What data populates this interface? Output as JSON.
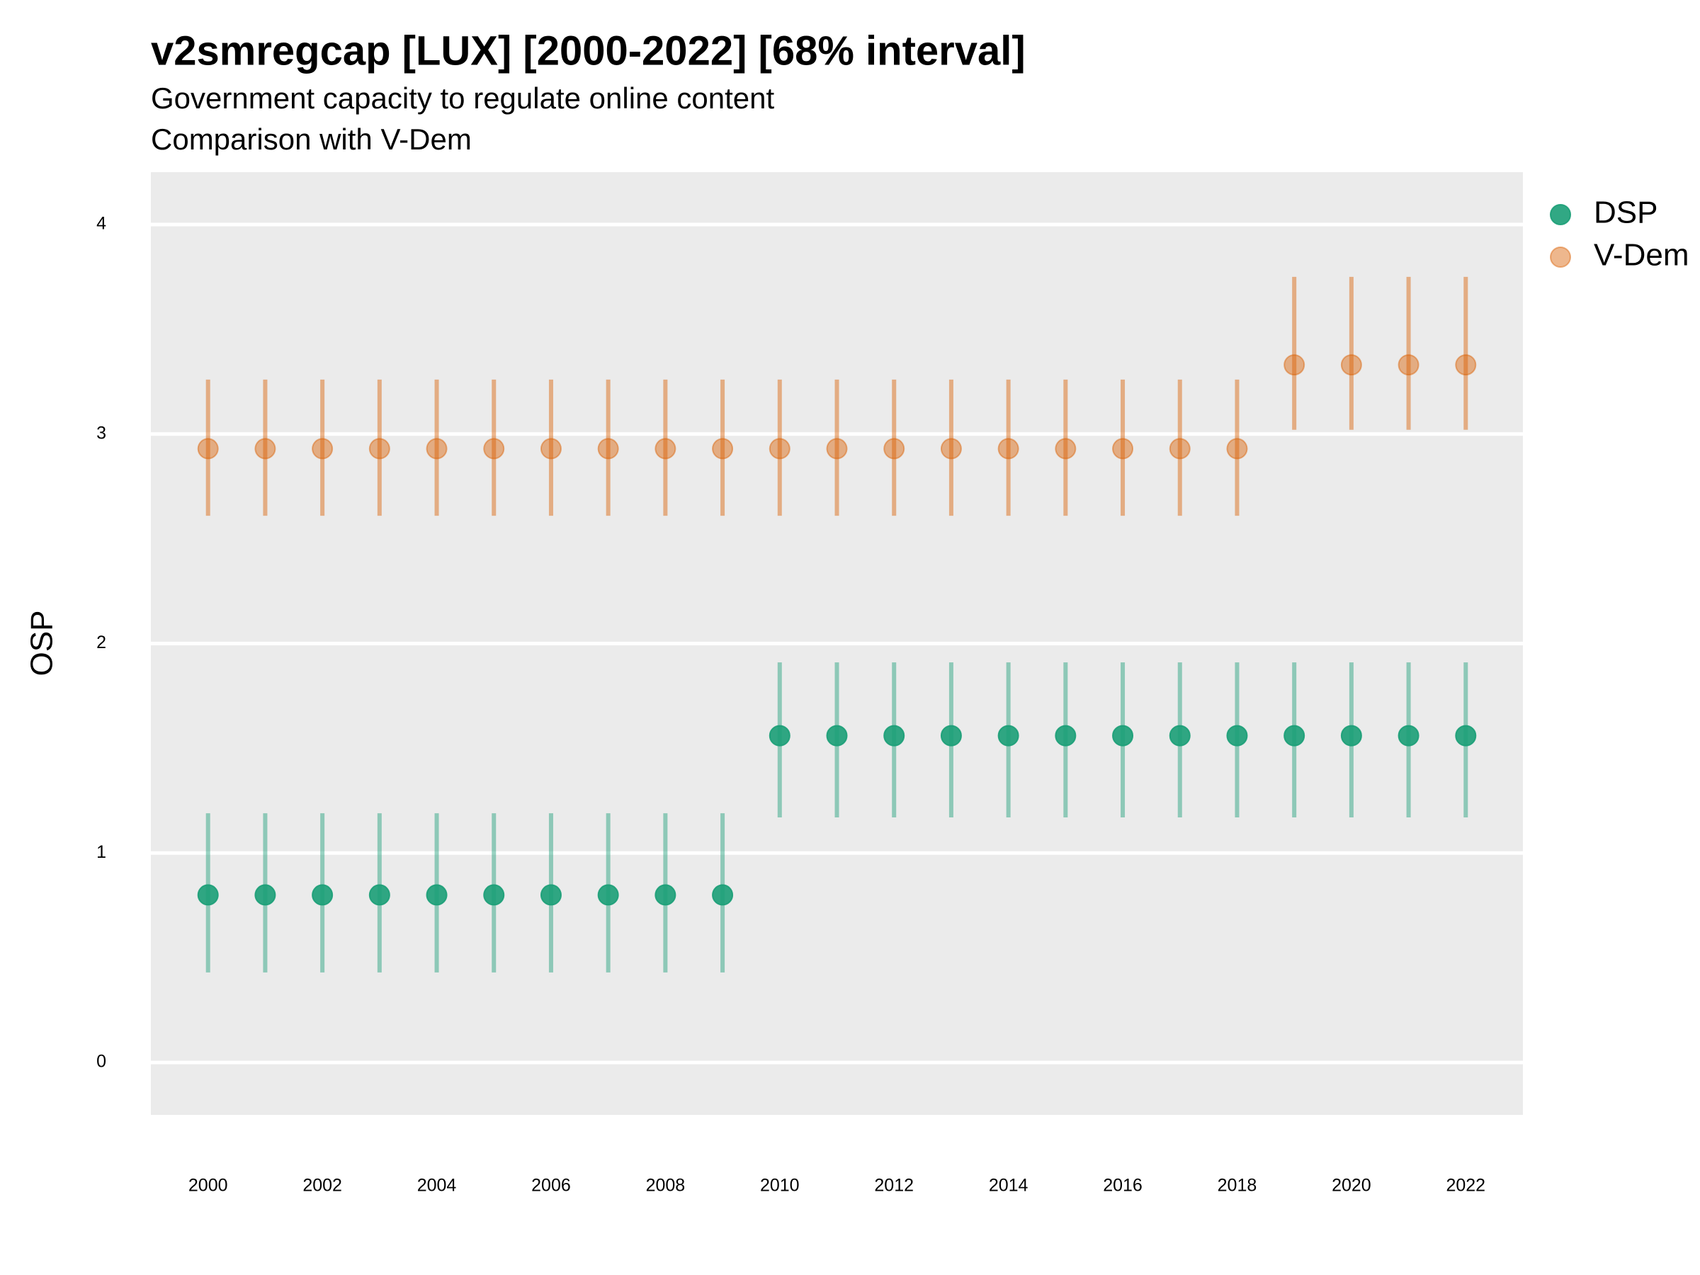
{
  "chart_data": {
    "type": "pointrange",
    "title": "v2smregcap [LUX] [2000-2022] [68% interval]",
    "subtitle": "Government capacity to regulate online content",
    "subtitle2": "Comparison with V-Dem",
    "y_label": "OSP",
    "x": [
      2000,
      2001,
      2002,
      2003,
      2004,
      2005,
      2006,
      2007,
      2008,
      2009,
      2010,
      2011,
      2012,
      2013,
      2014,
      2015,
      2016,
      2017,
      2018,
      2019,
      2020,
      2021,
      2022
    ],
    "series": [
      {
        "name": "DSP",
        "color": "#1b9e77",
        "values": [
          0.8,
          0.8,
          0.8,
          0.8,
          0.8,
          0.8,
          0.8,
          0.8,
          0.8,
          0.8,
          1.56,
          1.56,
          1.56,
          1.56,
          1.56,
          1.56,
          1.56,
          1.56,
          1.56,
          1.56,
          1.56,
          1.56,
          1.56
        ],
        "lower": [
          0.43,
          0.43,
          0.43,
          0.43,
          0.43,
          0.43,
          0.43,
          0.43,
          0.43,
          0.43,
          1.17,
          1.17,
          1.17,
          1.17,
          1.17,
          1.17,
          1.17,
          1.17,
          1.17,
          1.17,
          1.17,
          1.17,
          1.17
        ],
        "upper": [
          1.19,
          1.19,
          1.19,
          1.19,
          1.19,
          1.19,
          1.19,
          1.19,
          1.19,
          1.19,
          1.91,
          1.91,
          1.91,
          1.91,
          1.91,
          1.91,
          1.91,
          1.91,
          1.91,
          1.91,
          1.91,
          1.91,
          1.91
        ]
      },
      {
        "name": "V-Dem",
        "color": "#d95f02",
        "values": [
          2.93,
          2.93,
          2.93,
          2.93,
          2.93,
          2.93,
          2.93,
          2.93,
          2.93,
          2.93,
          2.93,
          2.93,
          2.93,
          2.93,
          2.93,
          2.93,
          2.93,
          2.93,
          2.93,
          3.33,
          3.33,
          3.33,
          3.33
        ],
        "lower": [
          2.61,
          2.61,
          2.61,
          2.61,
          2.61,
          2.61,
          2.61,
          2.61,
          2.61,
          2.61,
          2.61,
          2.61,
          2.61,
          2.61,
          2.61,
          2.61,
          2.61,
          2.61,
          2.61,
          3.02,
          3.02,
          3.02,
          3.02
        ],
        "upper": [
          3.26,
          3.26,
          3.26,
          3.26,
          3.26,
          3.26,
          3.26,
          3.26,
          3.26,
          3.26,
          3.26,
          3.26,
          3.26,
          3.26,
          3.26,
          3.26,
          3.26,
          3.26,
          3.26,
          3.75,
          3.75,
          3.75,
          3.75
        ]
      }
    ],
    "xlim": [
      1999,
      2023
    ],
    "xticks": [
      2000,
      2002,
      2004,
      2006,
      2008,
      2010,
      2012,
      2014,
      2016,
      2018,
      2020,
      2022
    ],
    "ylim": [
      -0.25,
      4.25
    ],
    "yticks": [
      0,
      1,
      2,
      3,
      4
    ],
    "grid": true,
    "legend": "right"
  }
}
